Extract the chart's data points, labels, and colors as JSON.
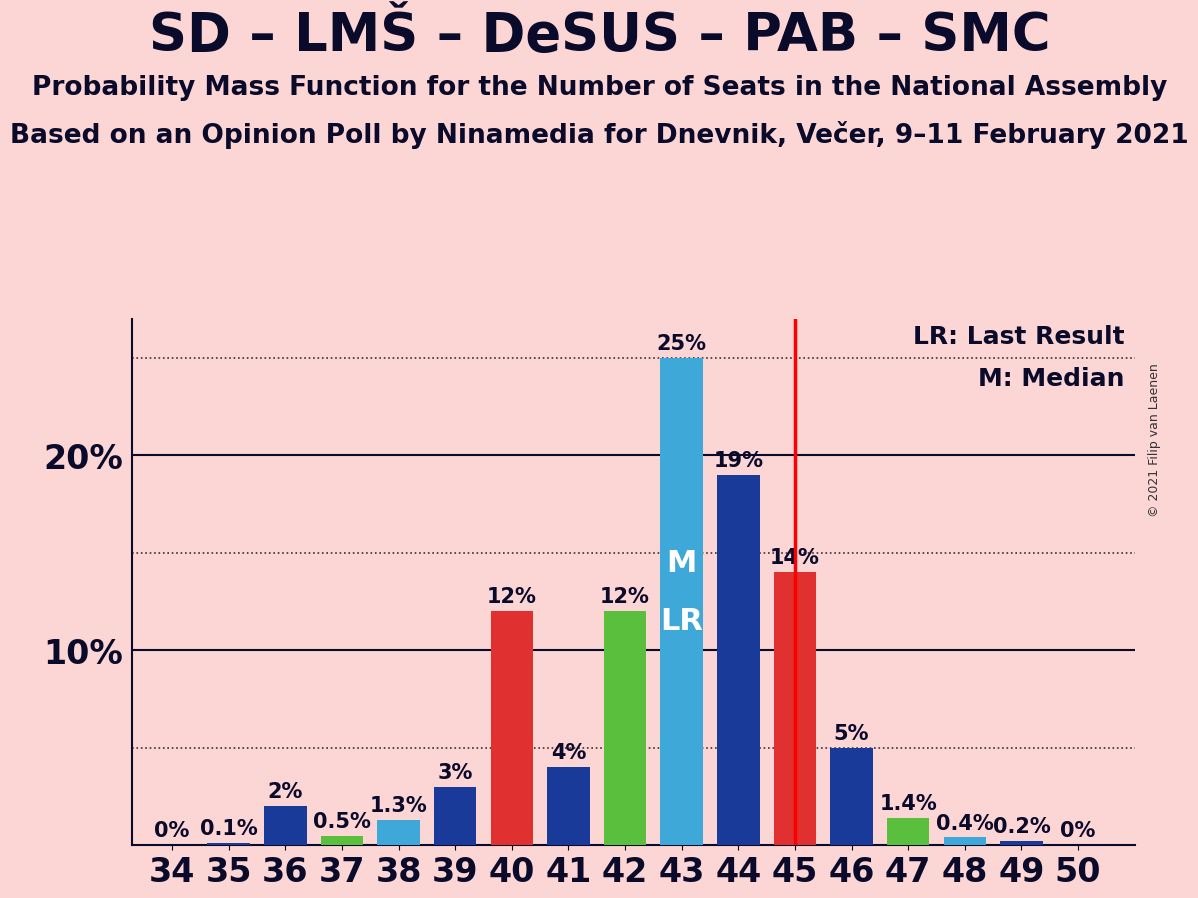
{
  "title": "SD – LMŠ – DeSUS – PAB – SMC",
  "subtitle1": "Probability Mass Function for the Number of Seats in the National Assembly",
  "subtitle2": "Based on an Opinion Poll by Ninamedia for Dnevnik, Večer, 9–11 February 2021",
  "copyright": "© 2021 Filip van Laenen",
  "background_color": "#fcd5d5",
  "lr_label": "LR: Last Result",
  "m_label": "M: Median",
  "seats": [
    34,
    35,
    36,
    37,
    38,
    39,
    40,
    41,
    42,
    43,
    44,
    45,
    46,
    47,
    48,
    49,
    50
  ],
  "values": [
    0.0,
    0.1,
    2.0,
    0.5,
    1.3,
    3.0,
    12.0,
    4.0,
    12.0,
    25.0,
    19.0,
    14.0,
    5.0,
    1.4,
    0.4,
    0.2,
    0.0
  ],
  "bar_colors": [
    "#1a3a9a",
    "#1a3a9a",
    "#1a3a9a",
    "#5abf3c",
    "#3ea8d8",
    "#1a3a9a",
    "#e03030",
    "#1a3a9a",
    "#5abf3c",
    "#3ea8d8",
    "#1a3a9a",
    "#e03030",
    "#1a3a9a",
    "#5abf3c",
    "#3ea8d8",
    "#1a3a9a",
    "#1a3a9a"
  ],
  "last_result": 45,
  "median": 43,
  "ylim": [
    0,
    27
  ],
  "solid_hlines": [
    10.0,
    20.0
  ],
  "dotted_hlines": [
    5.0,
    15.0,
    25.0
  ],
  "ytick_positions": [
    10.0,
    20.0
  ],
  "ytick_labels": [
    "10%",
    "20%"
  ],
  "title_fontsize": 38,
  "subtitle_fontsize": 19,
  "label_fontsize": 16,
  "axis_fontsize": 24,
  "bar_label_fontsize": 15,
  "m_lr_fontsize": 22
}
